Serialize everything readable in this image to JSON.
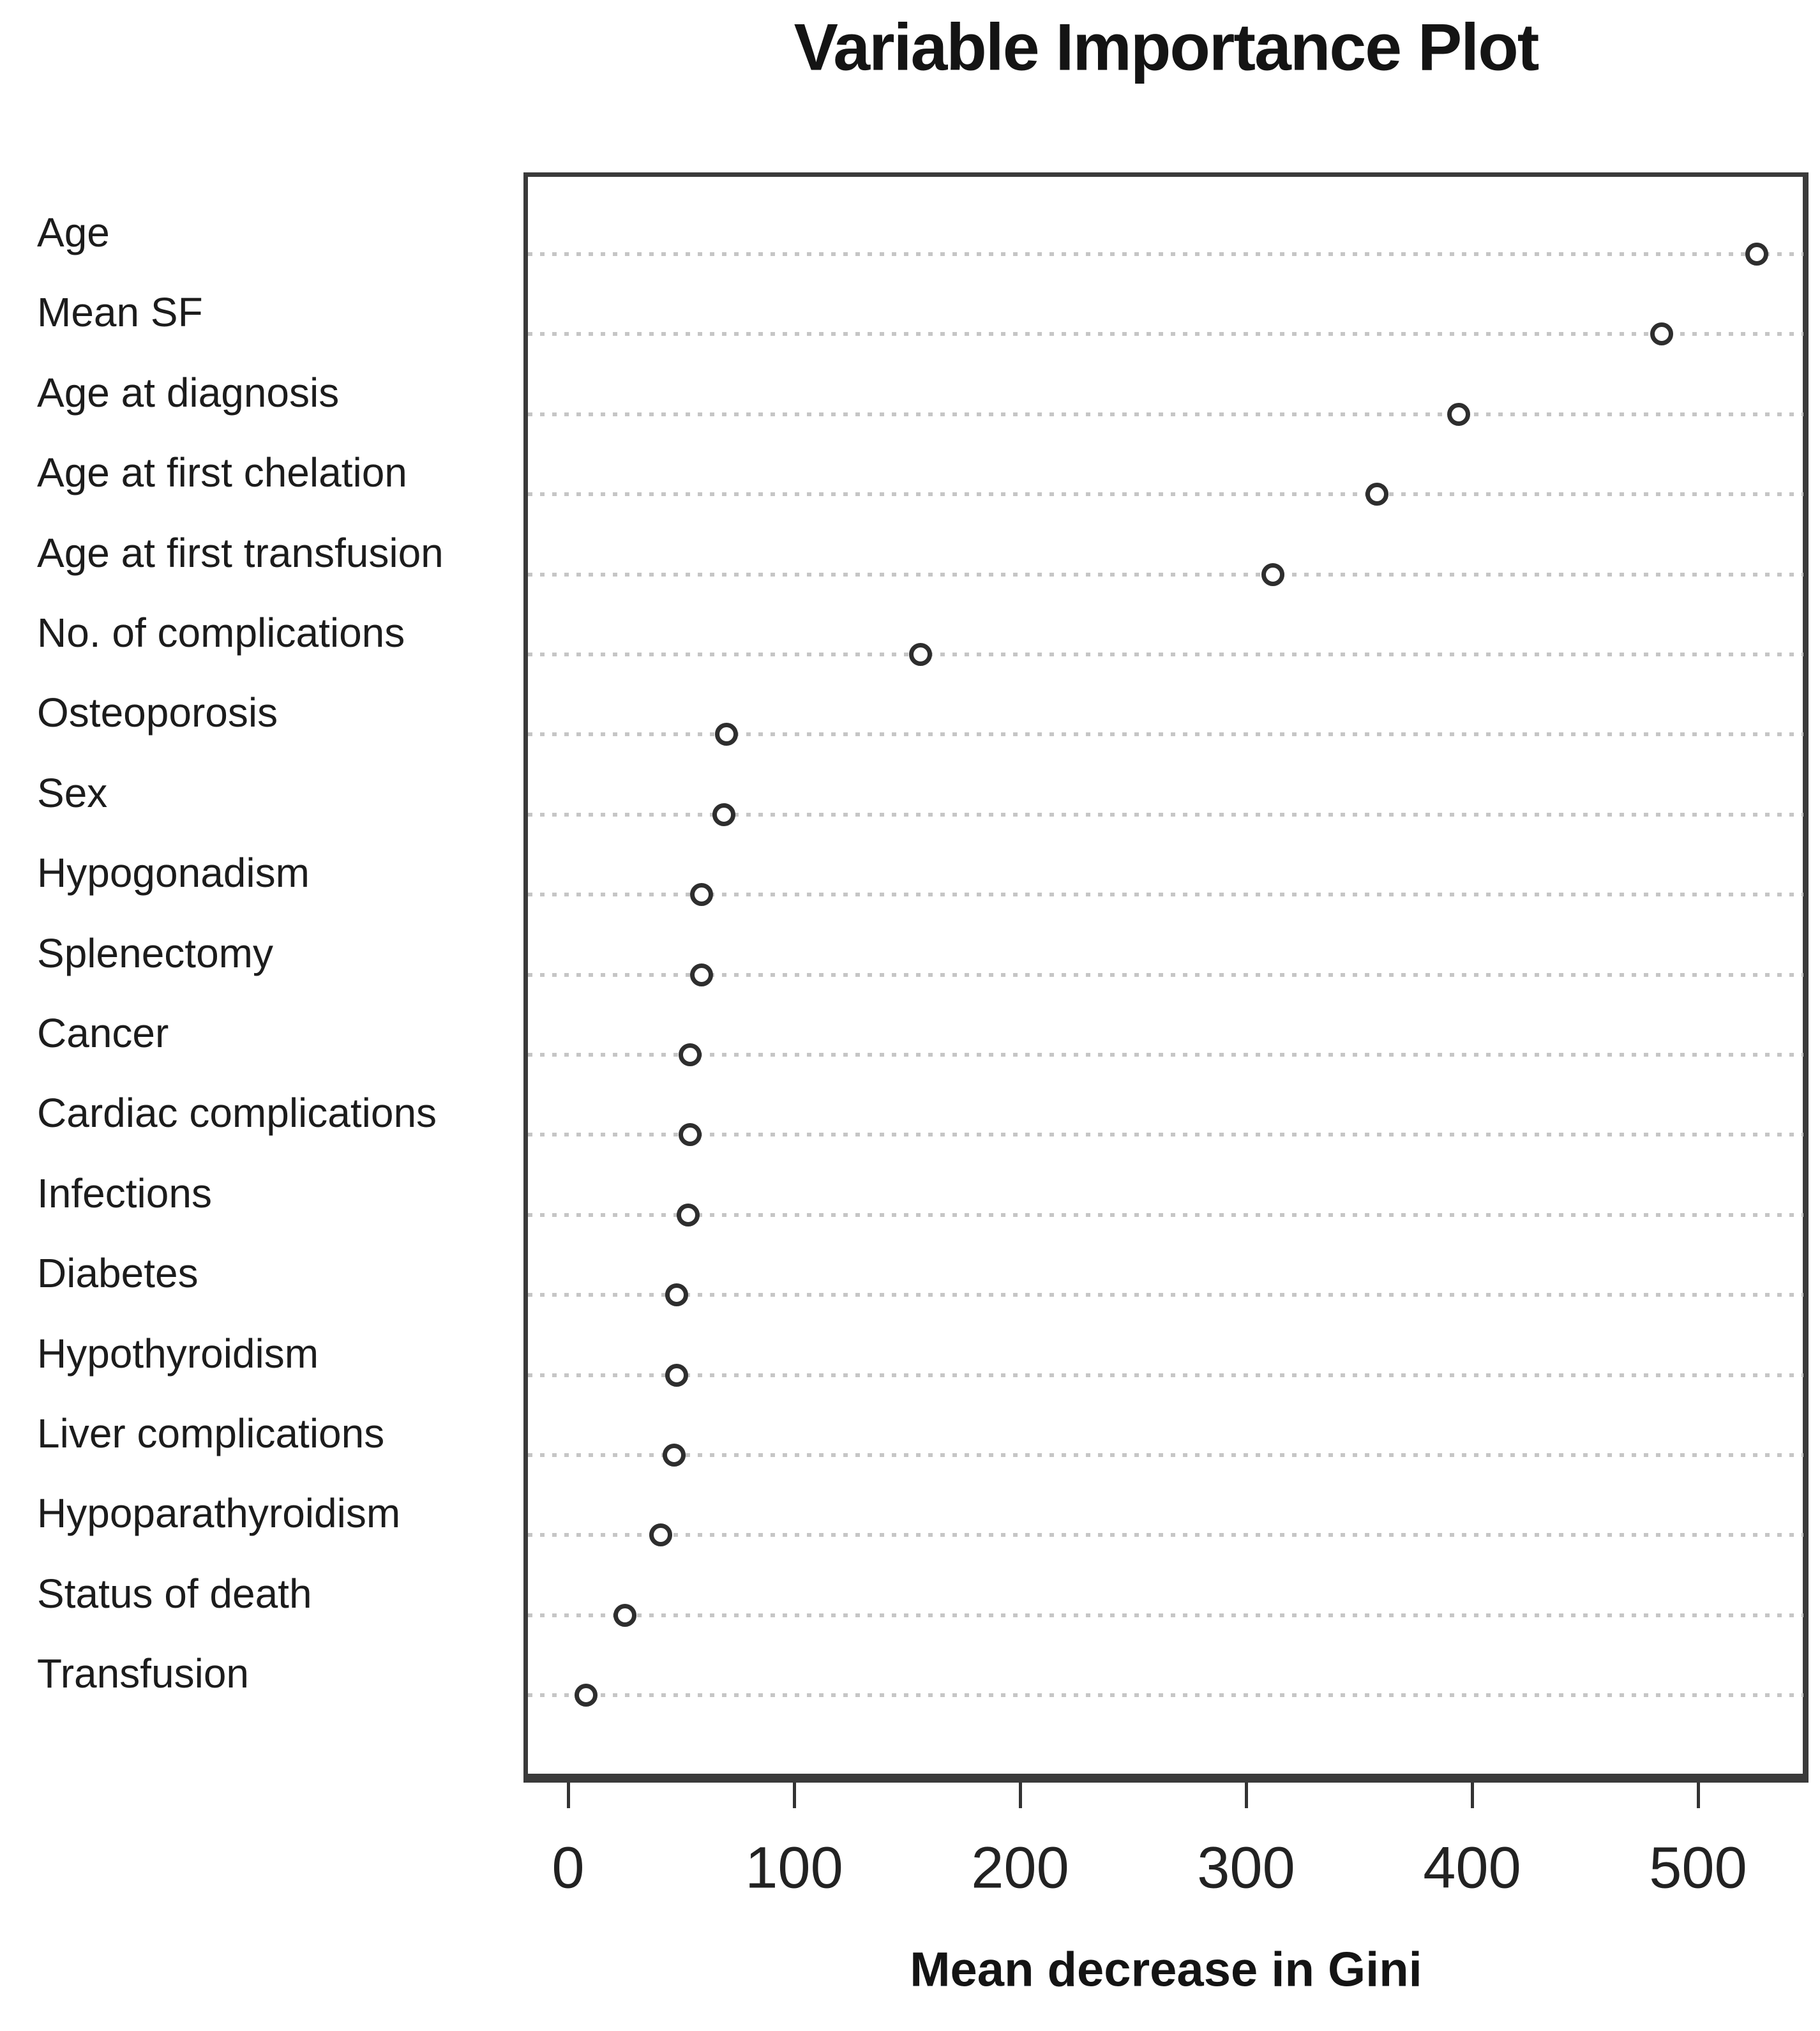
{
  "title": "Variable Importance Plot",
  "x_axis_label": "Mean decrease in Gini",
  "colors": {
    "background": "#ffffff",
    "text": "#1c1c1c",
    "plot_border": "#3a3a3a",
    "gridline": "#c6c6c6",
    "point_ring": "#2e2e2e",
    "point_fill": "#ffffff"
  },
  "chart_data": {
    "type": "scatter",
    "variant": "dot-plot",
    "title": "Variable Importance Plot",
    "xlabel": "Mean decrease in Gini",
    "ylabel": "",
    "categories": [
      "Age",
      "Mean SF",
      "Age at diagnosis",
      "Age at first chelation",
      "Age at first transfusion",
      "No. of complications",
      "Osteoporosis",
      "Sex",
      "Hypogonadism",
      "Splenectomy",
      "Cancer",
      "Cardiac complications",
      "Infections",
      "Diabetes",
      "Hypothyroidism",
      "Liver complications",
      "Hypoparathyroidism",
      "Status of death",
      "Transfusion"
    ],
    "values": [
      526,
      484,
      394,
      358,
      312,
      156,
      70,
      69,
      59,
      59,
      54,
      54,
      53,
      48,
      48,
      47,
      41,
      25,
      8
    ],
    "x_ticks": [
      0,
      100,
      200,
      300,
      400,
      500
    ],
    "xlim": [
      -20,
      550
    ],
    "grid": "horizontal dotted",
    "legend": "none",
    "marker": "open-circle"
  }
}
